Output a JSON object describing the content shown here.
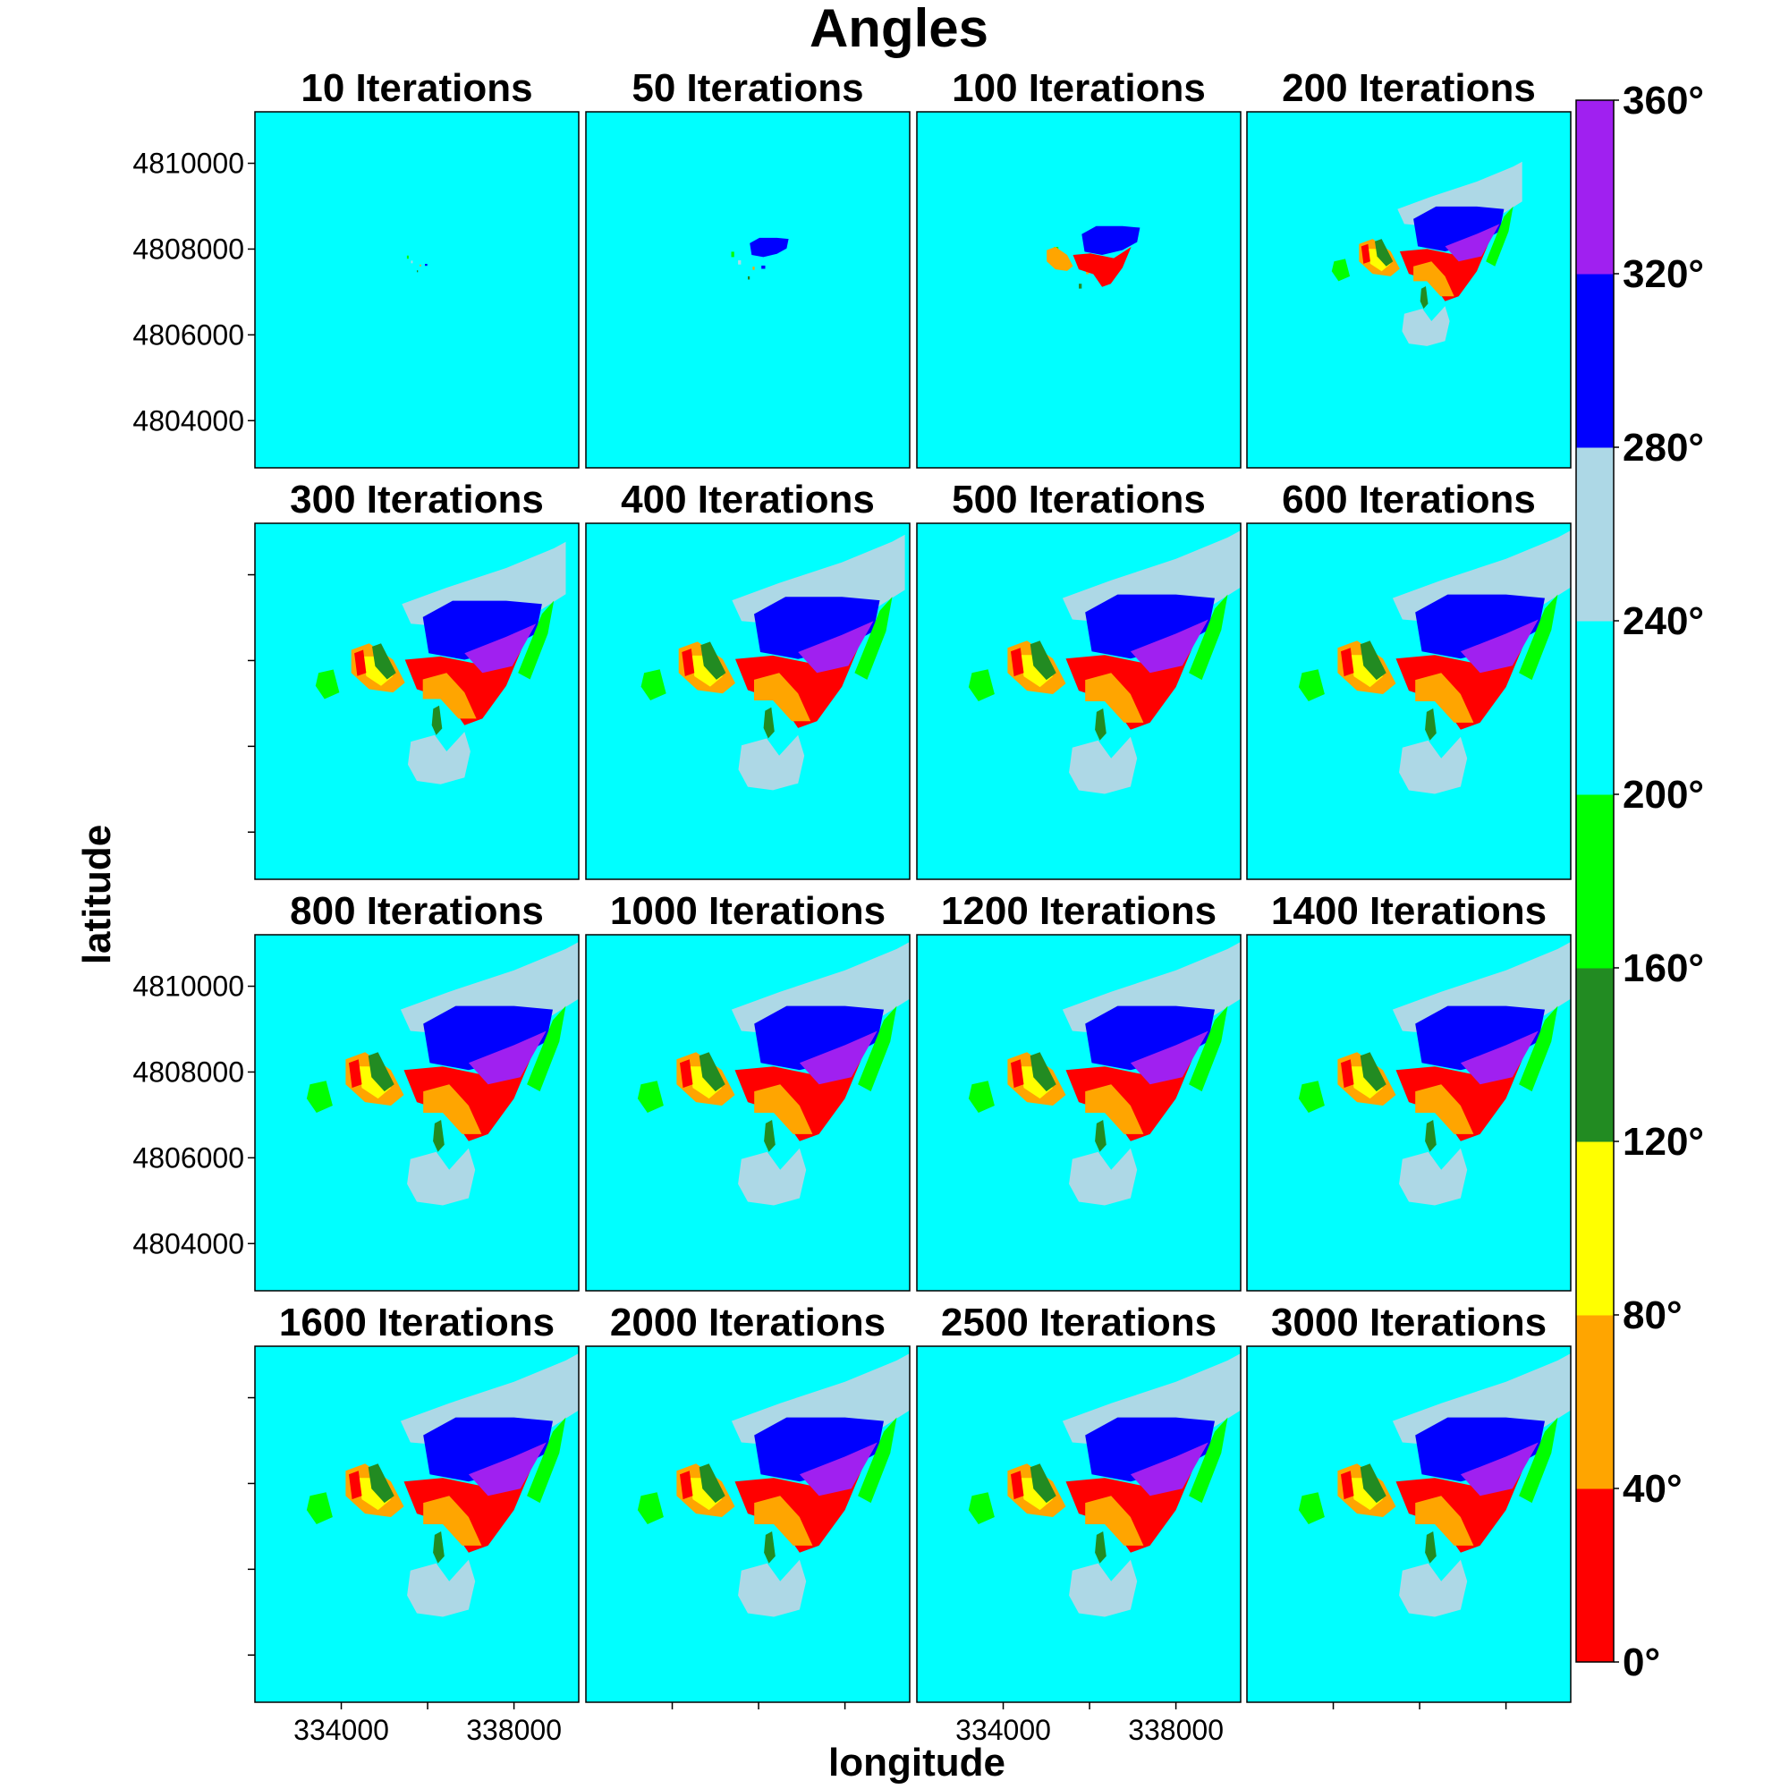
{
  "chart_data": {
    "type": "heatmap",
    "title": "Angles",
    "xlabel": "longitude",
    "ylabel": "latitude",
    "panels": [
      "10 Iterations",
      "50 Iterations",
      "100 Iterations",
      "200 Iterations",
      "300 Iterations",
      "400 Iterations",
      "500 Iterations",
      "600 Iterations",
      "800 Iterations",
      "1000 Iterations",
      "1200 Iterations",
      "1400 Iterations",
      "1600 Iterations",
      "2000 Iterations",
      "2500 Iterations",
      "3000 Iterations"
    ],
    "xlim": [
      332000,
      339500
    ],
    "ylim": [
      4802900,
      4811200
    ],
    "x_ticks": [
      334000,
      336000,
      338000
    ],
    "x_tick_labels": [
      "334000",
      "",
      "338000"
    ],
    "y_ticks": [
      4804000,
      4806000,
      4808000,
      4810000
    ],
    "y_tick_labels": [
      "4804000",
      "4806000",
      "4808000",
      "4810000"
    ],
    "background_class": "200°–240°",
    "legend": {
      "position": "right",
      "breaks": [
        0,
        40,
        80,
        120,
        160,
        200,
        240,
        280,
        320,
        360
      ],
      "labels": [
        "0°",
        "40°",
        "80°",
        "120°",
        "160°",
        "200°",
        "240°",
        "280°",
        "320°",
        "360°"
      ],
      "colors": [
        "#ff0000",
        "#ffa500",
        "#ffff00",
        "#228b22",
        "#00ff00",
        "#00ffff",
        "#add8e6",
        "#0000ff",
        "#a020f0"
      ]
    }
  }
}
